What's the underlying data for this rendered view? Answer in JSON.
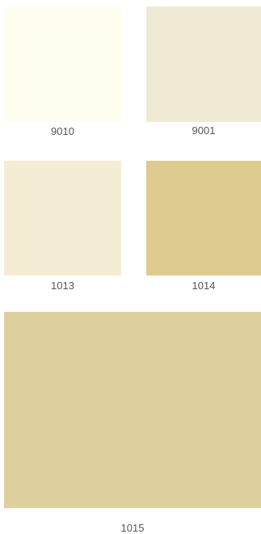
{
  "swatches": [
    {
      "code": "9010",
      "color": "#fffdf0"
    },
    {
      "code": "9001",
      "color": "#efead3"
    },
    {
      "code": "1013",
      "color": "#f5edd3"
    },
    {
      "code": "1014",
      "color": "#decb90"
    },
    {
      "code": "1015",
      "color": "#ded19f"
    }
  ]
}
